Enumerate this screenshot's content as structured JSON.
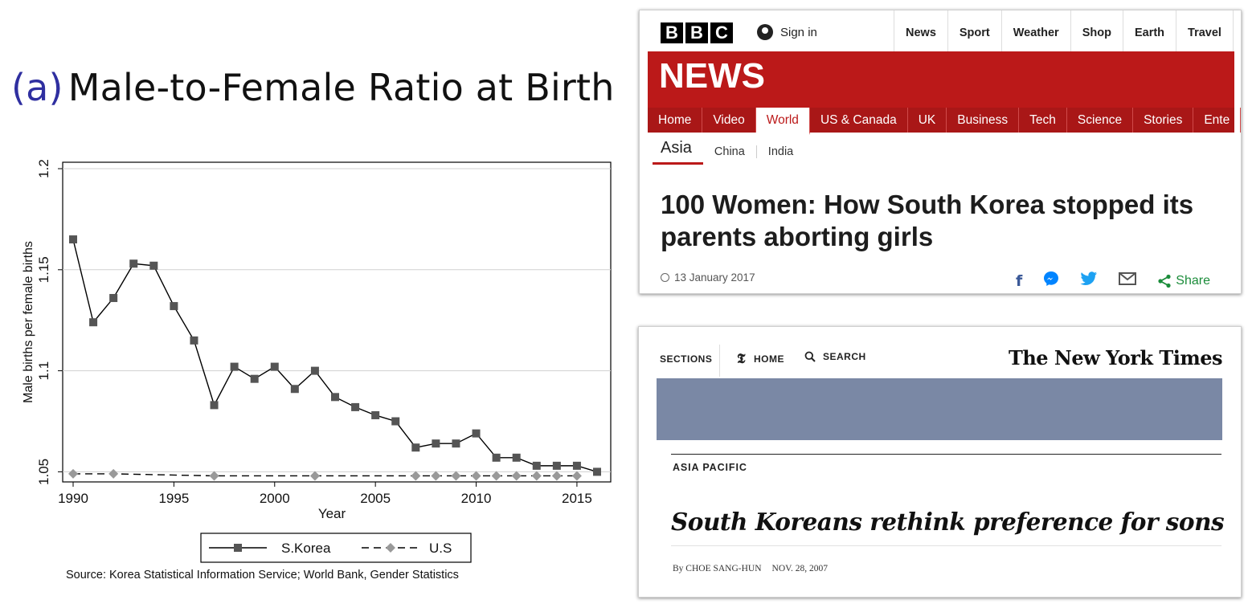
{
  "title": {
    "label": "(a)",
    "text": "Male-to-Female Ratio at Birth"
  },
  "chart_data": {
    "type": "line",
    "xlabel": "Year",
    "ylabel": "Male births per female births",
    "xlim": [
      1990,
      2016
    ],
    "ylim": [
      1.045,
      1.2
    ],
    "xticks": [
      1990,
      1995,
      2000,
      2005,
      2010,
      2015
    ],
    "yticks": [
      1.05,
      1.1,
      1.15,
      1.2
    ],
    "ytick_labels": [
      "1.05",
      "1.1",
      "1.15",
      "1.2"
    ],
    "grid": "horizontal",
    "legend_position": "bottom",
    "series": [
      {
        "name": "S.Korea",
        "style": "solid",
        "marker": "square",
        "color": "#555555",
        "x": [
          1990,
          1991,
          1992,
          1993,
          1994,
          1995,
          1996,
          1997,
          1998,
          1999,
          2000,
          2001,
          2002,
          2003,
          2004,
          2005,
          2006,
          2007,
          2008,
          2009,
          2010,
          2011,
          2012,
          2013,
          2014,
          2015,
          2016
        ],
        "values": [
          1.165,
          1.124,
          1.136,
          1.153,
          1.152,
          1.132,
          1.115,
          1.083,
          1.102,
          1.096,
          1.102,
          1.091,
          1.1,
          1.087,
          1.082,
          1.078,
          1.075,
          1.062,
          1.064,
          1.064,
          1.069,
          1.057,
          1.057,
          1.053,
          1.053,
          1.053,
          1.05
        ]
      },
      {
        "name": "U.S",
        "style": "dashed",
        "marker": "diamond",
        "color": "#999999",
        "x": [
          1990,
          1992,
          1997,
          2002,
          2007,
          2008,
          2009,
          2010,
          2011,
          2012,
          2013,
          2014,
          2015
        ],
        "values": [
          1.049,
          1.049,
          1.048,
          1.048,
          1.048,
          1.048,
          1.048,
          1.048,
          1.048,
          1.048,
          1.048,
          1.048,
          1.048
        ]
      }
    ],
    "source": "Source: Korea Statistical Information Service; World Bank, Gender Statistics"
  },
  "bbc": {
    "logo": [
      "B",
      "B",
      "C"
    ],
    "signin": "Sign in",
    "topnav": [
      "News",
      "Sport",
      "Weather",
      "Shop",
      "Earth",
      "Travel"
    ],
    "brand": "NEWS",
    "nav": [
      "Home",
      "Video",
      "World",
      "US & Canada",
      "UK",
      "Business",
      "Tech",
      "Science",
      "Stories",
      "Ente"
    ],
    "nav_active": "World",
    "subnav": [
      "Asia",
      "China",
      "India"
    ],
    "headline": "100 Women: How South Korea stopped its parents aborting girls",
    "date": "13 January 2017",
    "share_label": "Share",
    "colors": {
      "red": "#bb1919"
    }
  },
  "nyt": {
    "sections": "SECTIONS",
    "home": "HOME",
    "search": "SEARCH",
    "brand": "The New York Times",
    "kicker": "ASIA PACIFIC",
    "headline": "South Koreans rethink preference for sons",
    "byline_author": "By CHOE SANG-HUN",
    "byline_date": "NOV. 28, 2007",
    "colors": {
      "banner": "#7a88a5"
    }
  }
}
